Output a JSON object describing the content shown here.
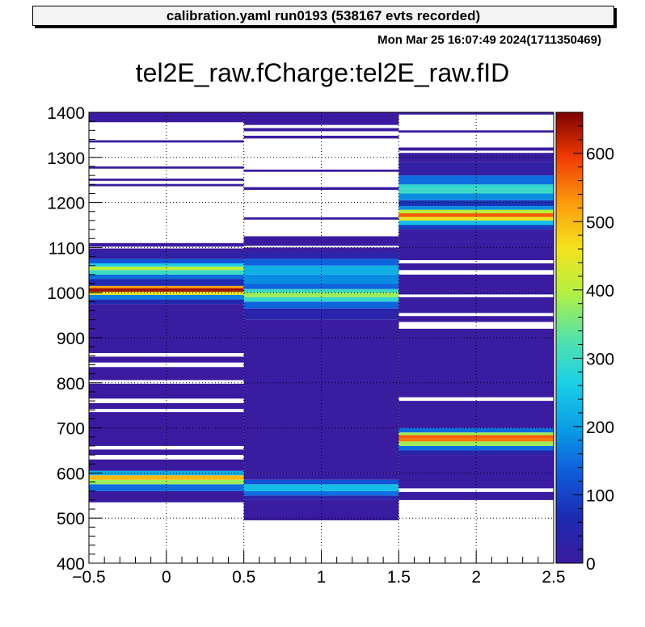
{
  "header": {
    "title": "calibration.yaml  run0193 (538167 evts recorded)",
    "timestamp": "Mon Mar 25 16:07:49 2024(1711350469)"
  },
  "chart_data": {
    "type": "heatmap",
    "title": "tel2E_raw.fCharge:tel2E_raw.fID",
    "xlabel": "",
    "ylabel": "",
    "xlim": [
      -0.5,
      2.5
    ],
    "ylim": [
      400,
      1400
    ],
    "zlim": [
      0,
      660
    ],
    "grid": true,
    "x_ticks": [
      "−0.5",
      "0",
      "0.5",
      "1",
      "1.5",
      "2",
      "2.5"
    ],
    "y_ticks": [
      "400",
      "500",
      "600",
      "700",
      "800",
      "900",
      "1000",
      "1100",
      "1200",
      "1300",
      "1400"
    ],
    "z_ticks": [
      "0",
      "100",
      "200",
      "300",
      "400",
      "500",
      "600"
    ],
    "colormap": [
      "#352a87",
      "#0f5cdd",
      "#1481d6",
      "#06a4ca",
      "#2eb7a4",
      "#87bf77",
      "#d1bb59",
      "#fec832",
      "#f9fb0e"
    ],
    "columns": [
      {
        "id": 0,
        "bands": [
          {
            "y0": 535,
            "y1": 560,
            "z": 2
          },
          {
            "y0": 560,
            "y1": 575,
            "z": 150
          },
          {
            "y0": 575,
            "y1": 585,
            "z": 380
          },
          {
            "y0": 585,
            "y1": 595,
            "z": 500
          },
          {
            "y0": 595,
            "y1": 605,
            "z": 220
          },
          {
            "y0": 605,
            "y1": 630,
            "z": 2
          },
          {
            "y0": 640,
            "y1": 652,
            "z": 2
          },
          {
            "y0": 660,
            "y1": 735,
            "z": 2
          },
          {
            "y0": 742,
            "y1": 755,
            "z": 2
          },
          {
            "y0": 765,
            "y1": 798,
            "z": 2
          },
          {
            "y0": 806,
            "y1": 835,
            "z": 2
          },
          {
            "y0": 845,
            "y1": 858,
            "z": 2
          },
          {
            "y0": 866,
            "y1": 975,
            "z": 3
          },
          {
            "y0": 975,
            "y1": 985,
            "z": 60
          },
          {
            "y0": 985,
            "y1": 995,
            "z": 170
          },
          {
            "y0": 995,
            "y1": 1002,
            "z": 450
          },
          {
            "y0": 1002,
            "y1": 1010,
            "z": 640
          },
          {
            "y0": 1010,
            "y1": 1015,
            "z": 520
          },
          {
            "y0": 1015,
            "y1": 1030,
            "z": 60
          },
          {
            "y0": 1030,
            "y1": 1040,
            "z": 150
          },
          {
            "y0": 1040,
            "y1": 1050,
            "z": 300
          },
          {
            "y0": 1050,
            "y1": 1058,
            "z": 400
          },
          {
            "y0": 1058,
            "y1": 1065,
            "z": 260
          },
          {
            "y0": 1065,
            "y1": 1075,
            "z": 120
          },
          {
            "y0": 1075,
            "y1": 1090,
            "z": 25
          },
          {
            "y0": 1090,
            "y1": 1098,
            "z": 3
          },
          {
            "y0": 1102,
            "y1": 1110,
            "z": 2
          },
          {
            "y0": 1236,
            "y1": 1241,
            "z": 2
          },
          {
            "y0": 1248,
            "y1": 1253,
            "z": 2
          },
          {
            "y0": 1275,
            "y1": 1280,
            "z": 2
          },
          {
            "y0": 1333,
            "y1": 1338,
            "z": 2
          },
          {
            "y0": 1378,
            "y1": 1400,
            "z": 2
          }
        ]
      },
      {
        "id": 1,
        "bands": [
          {
            "y0": 495,
            "y1": 540,
            "z": 3
          },
          {
            "y0": 540,
            "y1": 550,
            "z": 40
          },
          {
            "y0": 550,
            "y1": 560,
            "z": 150
          },
          {
            "y0": 560,
            "y1": 575,
            "z": 240
          },
          {
            "y0": 575,
            "y1": 585,
            "z": 120
          },
          {
            "y0": 585,
            "y1": 600,
            "z": 12
          },
          {
            "y0": 600,
            "y1": 940,
            "z": 3
          },
          {
            "y0": 940,
            "y1": 965,
            "z": 40
          },
          {
            "y0": 965,
            "y1": 980,
            "z": 140
          },
          {
            "y0": 980,
            "y1": 990,
            "z": 290
          },
          {
            "y0": 990,
            "y1": 1000,
            "z": 380
          },
          {
            "y0": 1000,
            "y1": 1008,
            "z": 300
          },
          {
            "y0": 1008,
            "y1": 1020,
            "z": 140
          },
          {
            "y0": 1020,
            "y1": 1040,
            "z": 180
          },
          {
            "y0": 1040,
            "y1": 1060,
            "z": 220
          },
          {
            "y0": 1060,
            "y1": 1075,
            "z": 140
          },
          {
            "y0": 1075,
            "y1": 1090,
            "z": 40
          },
          {
            "y0": 1090,
            "y1": 1100,
            "z": 3
          },
          {
            "y0": 1104,
            "y1": 1125,
            "z": 2
          },
          {
            "y0": 1162,
            "y1": 1167,
            "z": 2
          },
          {
            "y0": 1228,
            "y1": 1234,
            "z": 2
          },
          {
            "y0": 1268,
            "y1": 1273,
            "z": 2
          },
          {
            "y0": 1342,
            "y1": 1348,
            "z": 2
          },
          {
            "y0": 1358,
            "y1": 1365,
            "z": 2
          },
          {
            "y0": 1372,
            "y1": 1400,
            "z": 2
          }
        ]
      },
      {
        "id": 2,
        "bands": [
          {
            "y0": 540,
            "y1": 558,
            "z": 3
          },
          {
            "y0": 566,
            "y1": 640,
            "z": 3
          },
          {
            "y0": 640,
            "y1": 650,
            "z": 40
          },
          {
            "y0": 650,
            "y1": 660,
            "z": 150
          },
          {
            "y0": 660,
            "y1": 670,
            "z": 380
          },
          {
            "y0": 670,
            "y1": 677,
            "z": 550
          },
          {
            "y0": 677,
            "y1": 684,
            "z": 570
          },
          {
            "y0": 684,
            "y1": 690,
            "z": 380
          },
          {
            "y0": 690,
            "y1": 700,
            "z": 150
          },
          {
            "y0": 700,
            "y1": 760,
            "z": 3
          },
          {
            "y0": 768,
            "y1": 920,
            "z": 3
          },
          {
            "y0": 935,
            "y1": 948,
            "z": 3
          },
          {
            "y0": 955,
            "y1": 990,
            "z": 3
          },
          {
            "y0": 996,
            "y1": 1040,
            "z": 3
          },
          {
            "y0": 1050,
            "y1": 1065,
            "z": 3
          },
          {
            "y0": 1072,
            "y1": 1115,
            "z": 3
          },
          {
            "y0": 1115,
            "y1": 1140,
            "z": 3
          },
          {
            "y0": 1140,
            "y1": 1150,
            "z": 90
          },
          {
            "y0": 1150,
            "y1": 1160,
            "z": 240
          },
          {
            "y0": 1160,
            "y1": 1168,
            "z": 450
          },
          {
            "y0": 1168,
            "y1": 1176,
            "z": 570
          },
          {
            "y0": 1176,
            "y1": 1184,
            "z": 400
          },
          {
            "y0": 1184,
            "y1": 1192,
            "z": 180
          },
          {
            "y0": 1192,
            "y1": 1205,
            "z": 80
          },
          {
            "y0": 1205,
            "y1": 1220,
            "z": 180
          },
          {
            "y0": 1220,
            "y1": 1230,
            "z": 300
          },
          {
            "y0": 1230,
            "y1": 1240,
            "z": 290
          },
          {
            "y0": 1240,
            "y1": 1260,
            "z": 150
          },
          {
            "y0": 1260,
            "y1": 1290,
            "z": 20
          },
          {
            "y0": 1290,
            "y1": 1310,
            "z": 3
          },
          {
            "y0": 1315,
            "y1": 1322,
            "z": 2
          },
          {
            "y0": 1355,
            "y1": 1360,
            "z": 2
          },
          {
            "y0": 1395,
            "y1": 1400,
            "z": 2
          }
        ]
      }
    ]
  }
}
